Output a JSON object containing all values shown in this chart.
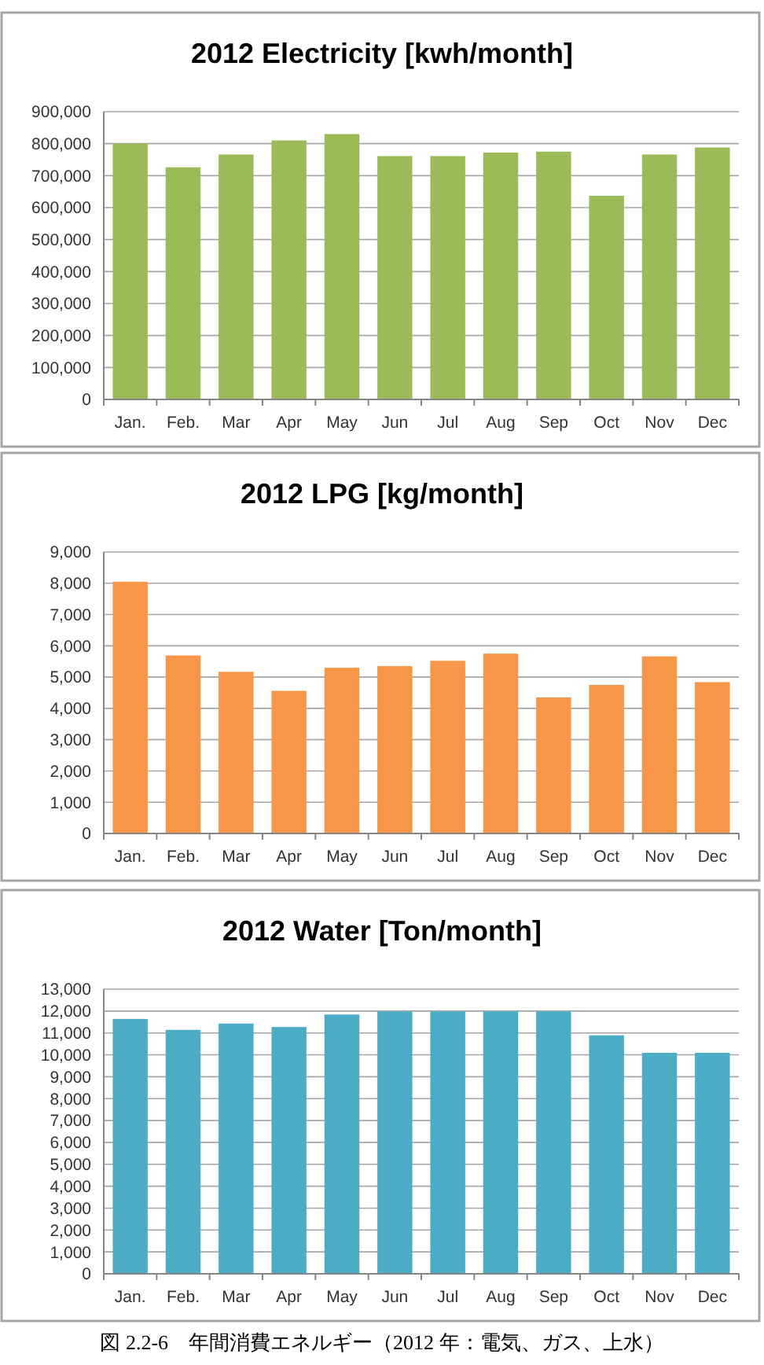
{
  "chart_data": [
    {
      "type": "bar",
      "title": "2012 Electricity [kwh/month]",
      "categories": [
        "Jan.",
        "Feb.",
        "Mar",
        "Apr",
        "May",
        "Jun",
        "Jul",
        "Aug",
        "Sep",
        "Oct",
        "Nov",
        "Dec"
      ],
      "series": [
        {
          "color": "#9bbb59",
          "values": [
            800000,
            726000,
            766000,
            810000,
            830000,
            761000,
            761000,
            772000,
            775000,
            637000,
            766000,
            788000
          ]
        }
      ],
      "ylim": [
        0,
        900000
      ],
      "yticks": [
        {
          "value": 0,
          "label": "0"
        },
        {
          "value": 100000,
          "label": "100,000"
        },
        {
          "value": 200000,
          "label": "200,000"
        },
        {
          "value": 300000,
          "label": "300,000"
        },
        {
          "value": 400000,
          "label": "400,000"
        },
        {
          "value": 500000,
          "label": "500,000"
        },
        {
          "value": 600000,
          "label": "600,000"
        },
        {
          "value": 700000,
          "label": "700,000"
        },
        {
          "value": 800000,
          "label": "800,000"
        },
        {
          "value": 900000,
          "label": "900,000"
        }
      ],
      "grid": "y"
    },
    {
      "type": "bar",
      "title": "2012 LPG [kg/month]",
      "categories": [
        "Jan.",
        "Feb.",
        "Mar",
        "Apr",
        "May",
        "Jun",
        "Jul",
        "Aug",
        "Sep",
        "Oct",
        "Nov",
        "Dec"
      ],
      "series": [
        {
          "color": "#f79646",
          "values": [
            8050,
            5690,
            5170,
            4560,
            5300,
            5350,
            5520,
            5750,
            4350,
            4750,
            5660,
            4840
          ]
        }
      ],
      "ylim": [
        0,
        9000
      ],
      "yticks": [
        {
          "value": 0,
          "label": "0"
        },
        {
          "value": 1000,
          "label": "1,000"
        },
        {
          "value": 2000,
          "label": "2,000"
        },
        {
          "value": 3000,
          "label": "3,000"
        },
        {
          "value": 4000,
          "label": "4,000"
        },
        {
          "value": 5000,
          "label": "5,000"
        },
        {
          "value": 6000,
          "label": "6,000"
        },
        {
          "value": 7000,
          "label": "7,000"
        },
        {
          "value": 8000,
          "label": "8,000"
        },
        {
          "value": 9000,
          "label": "9,000"
        }
      ],
      "grid": "y"
    },
    {
      "type": "bar",
      "title": "2012 Water [Ton/month]",
      "categories": [
        "Jan.",
        "Feb.",
        "Mar",
        "Apr",
        "May",
        "Jun",
        "Jul",
        "Aug",
        "Sep",
        "Oct",
        "Nov",
        "Dec"
      ],
      "series": [
        {
          "color": "#4bacc6",
          "values": [
            11640,
            11140,
            11430,
            11270,
            11840,
            11980,
            11980,
            11980,
            11980,
            10890,
            10090,
            10090
          ]
        }
      ],
      "ylim": [
        0,
        13000
      ],
      "yticks": [
        {
          "value": 0,
          "label": "0"
        },
        {
          "value": 1000,
          "label": "1,000"
        },
        {
          "value": 2000,
          "label": "2,000"
        },
        {
          "value": 3000,
          "label": "3,000"
        },
        {
          "value": 4000,
          "label": "4,000"
        },
        {
          "value": 5000,
          "label": "5,000"
        },
        {
          "value": 6000,
          "label": "6,000"
        },
        {
          "value": 7000,
          "label": "7,000"
        },
        {
          "value": 8000,
          "label": "8,000"
        },
        {
          "value": 9000,
          "label": "9,000"
        },
        {
          "value": 10000,
          "label": "10,000"
        },
        {
          "value": 11000,
          "label": "11,000"
        },
        {
          "value": 12000,
          "label": "12,000"
        },
        {
          "value": 13000,
          "label": "13,000"
        }
      ],
      "grid": "y",
      "annotations": [
        "図 2.2-6　年間消費エネルギー（2012 年：電気、ガス、上水）"
      ]
    }
  ]
}
